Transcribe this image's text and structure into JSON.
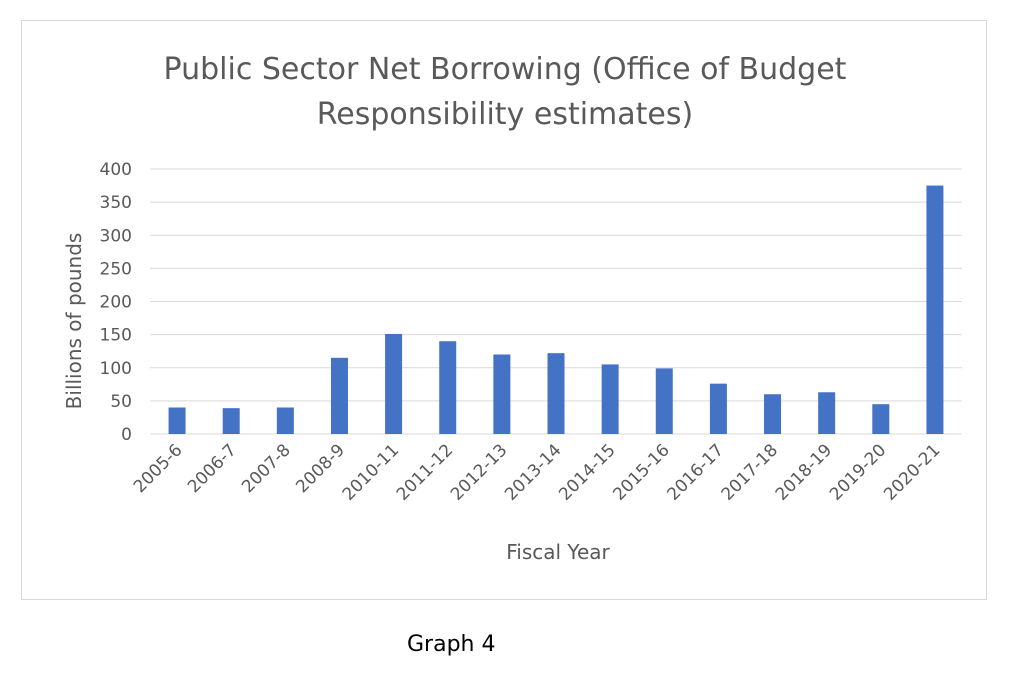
{
  "chart_data": {
    "type": "bar",
    "title_lines": [
      "Public Sector Net Borrowing (Office of Budget",
      "Responsibility estimates)"
    ],
    "xlabel": "Fiscal Year",
    "ylabel": "Billions of pounds",
    "ylim": [
      0,
      400
    ],
    "yticks": [
      0,
      50,
      100,
      150,
      200,
      250,
      300,
      350,
      400
    ],
    "grid": true,
    "categories": [
      "2005-6",
      "2006-7",
      "2007-8",
      "2008-9",
      "2010-11",
      "2011-12",
      "2012-13",
      "2013-14",
      "2014-15",
      "2015-16",
      "2016-17",
      "2017-18",
      "2018-19",
      "2019-20",
      "2020-21"
    ],
    "values": [
      40,
      39,
      40,
      115,
      151,
      140,
      120,
      122,
      105,
      99,
      76,
      60,
      63,
      45,
      375
    ],
    "bar_color": "#4472c4"
  },
  "caption": "Graph 4"
}
